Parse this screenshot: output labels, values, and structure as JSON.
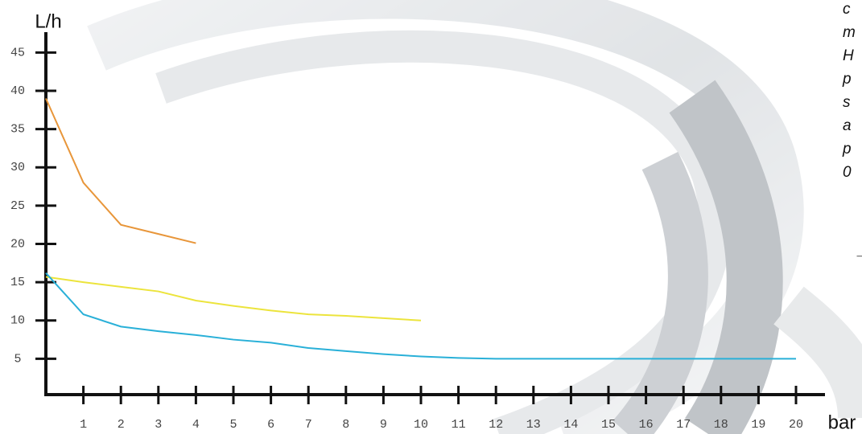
{
  "chart_data": {
    "type": "line",
    "y_label": "L/h",
    "x_label": "bar",
    "xlim": [
      0,
      20.8
    ],
    "ylim": [
      0,
      47
    ],
    "xticks": [
      1,
      2,
      3,
      4,
      5,
      6,
      7,
      8,
      9,
      10,
      11,
      12,
      13,
      14,
      15,
      16,
      17,
      18,
      19,
      20
    ],
    "yticks": [
      5,
      10,
      15,
      20,
      25,
      30,
      35,
      40,
      45
    ],
    "series": [
      {
        "color": "#e8963a",
        "x": [
          0,
          1,
          2,
          3,
          4
        ],
        "values": [
          39,
          28,
          22.5,
          21.3,
          20.1
        ]
      },
      {
        "color": "#ece43c",
        "x": [
          0,
          1,
          2,
          3,
          4,
          5,
          6,
          7,
          8,
          9,
          10
        ],
        "values": [
          15.7,
          15,
          14.4,
          13.8,
          12.6,
          11.9,
          11.3,
          10.8,
          10.6,
          10.3,
          10
        ]
      },
      {
        "color": "#29b0d8",
        "x": [
          0,
          1,
          2,
          3,
          4,
          5,
          6,
          7,
          8,
          9,
          10,
          11,
          12,
          13,
          14,
          15,
          16,
          17,
          18,
          19,
          20
        ],
        "values": [
          16.2,
          10.8,
          9.2,
          8.6,
          8.1,
          7.5,
          7.1,
          6.4,
          6.0,
          5.6,
          5.3,
          5.1,
          5.0,
          5.0,
          5.0,
          5.0,
          5.0,
          5.0,
          5.0,
          5.0,
          5.0
        ]
      }
    ],
    "side_text": [
      "c",
      "m",
      "H",
      "p",
      "s",
      "a",
      "p",
      "0",
      "_"
    ]
  }
}
